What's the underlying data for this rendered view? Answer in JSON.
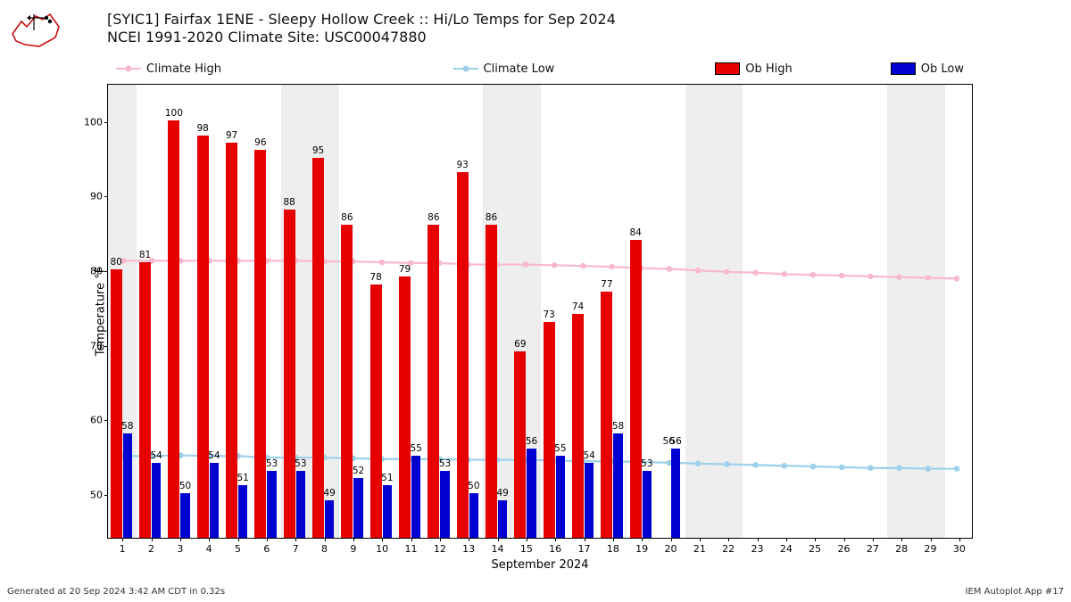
{
  "title_line1": "[SYIC1] Fairfax 1ENE - Sleepy Hollow Creek :: Hi/Lo Temps for Sep 2024",
  "title_line2": "NCEI 1991-2020 Climate Site: USC00047880",
  "legend": {
    "climate_high": "Climate High",
    "climate_low": "Climate Low",
    "ob_high": "Ob High",
    "ob_low": "Ob Low"
  },
  "colors": {
    "climate_high": "#f8b9ce",
    "climate_low": "#9cd1e9",
    "ob_high": "#e60000",
    "ob_low": "#0000d0",
    "weekend_band": "#eeeeee",
    "axis": "#000000",
    "bg": "#ffffff"
  },
  "chart": {
    "type": "bar+line",
    "ylim": [
      44,
      105
    ],
    "ytick_step": 10,
    "yticks": [
      50,
      60,
      70,
      80,
      90,
      100
    ],
    "ylabel": "Temperature °F",
    "xlabel": "September 2024",
    "days": [
      1,
      2,
      3,
      4,
      5,
      6,
      7,
      8,
      9,
      10,
      11,
      12,
      13,
      14,
      15,
      16,
      17,
      18,
      19,
      20,
      21,
      22,
      23,
      24,
      25,
      26,
      27,
      28,
      29,
      30
    ],
    "weekend_days": [
      1,
      7,
      8,
      14,
      15,
      21,
      22,
      28,
      29
    ],
    "ob_high": [
      80,
      81,
      100,
      98,
      97,
      96,
      88,
      95,
      86,
      78,
      79,
      86,
      93,
      86,
      69,
      73,
      74,
      77,
      84,
      null,
      null,
      null,
      null,
      null,
      null,
      null,
      null,
      null,
      null,
      null
    ],
    "ob_low": [
      58,
      54,
      50,
      54,
      51,
      53,
      53,
      49,
      52,
      51,
      55,
      53,
      50,
      49,
      56,
      55,
      54,
      58,
      53,
      56,
      null,
      null,
      null,
      null,
      null,
      null,
      null,
      null,
      null,
      null
    ],
    "ob_low_label_suffix": {
      "20": "56"
    },
    "climate_high": [
      81.3,
      81.3,
      81.3,
      81.3,
      81.3,
      81.3,
      81.3,
      81.2,
      81.2,
      81.1,
      81.0,
      81.0,
      80.8,
      80.8,
      80.8,
      80.7,
      80.6,
      80.5,
      80.3,
      80.2,
      80.0,
      79.8,
      79.7,
      79.5,
      79.4,
      79.3,
      79.2,
      79.1,
      79.0,
      78.9
    ],
    "climate_low": [
      55.0,
      55.0,
      55.1,
      55.0,
      55.0,
      54.8,
      54.8,
      54.8,
      54.7,
      54.6,
      54.6,
      54.6,
      54.5,
      54.5,
      54.5,
      54.4,
      54.3,
      54.3,
      54.2,
      54.1,
      54.0,
      53.9,
      53.8,
      53.7,
      53.6,
      53.5,
      53.4,
      53.4,
      53.3,
      53.3
    ],
    "bar_width_ratio_high": 0.4,
    "bar_width_ratio_low": 0.32,
    "marker_radius": 3.3,
    "line_width": 2.2
  },
  "footer_left": "Generated at 20 Sep 2024 3:42 AM CDT in 0.32s",
  "footer_right": "IEM Autoplot App #17"
}
